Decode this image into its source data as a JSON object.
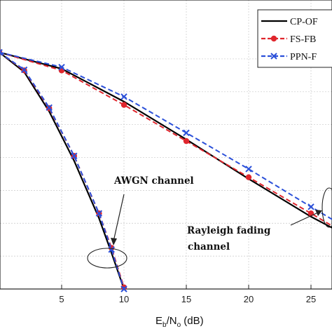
{
  "chart_data": {
    "type": "line",
    "xlabel_base": "E",
    "xlabel_sub1": "b",
    "xlabel_mid": "/N",
    "xlabel_sub2": "o",
    "xlabel_unit": " (dB)",
    "xlim": [
      0,
      27
    ],
    "x_ticks": [
      5,
      10,
      15,
      20,
      25
    ],
    "ylim": [
      0,
      8
    ],
    "grid": true,
    "legend_position": "top-right",
    "series": [
      {
        "name": "CP-OF",
        "color": "#000000",
        "dash": "solid",
        "marker": "none",
        "curves": [
          {
            "x": [
              0,
              5,
              10,
              15,
              20,
              25,
              27
            ],
            "y": [
              7.2,
              6.7,
              5.7,
              4.55,
              3.35,
              2.2,
              1.8
            ]
          },
          {
            "x": [
              0,
              2,
              4,
              6,
              8,
              9,
              10
            ],
            "y": [
              7.2,
              6.6,
              5.4,
              3.9,
              2.15,
              1.1,
              0
            ]
          }
        ]
      },
      {
        "name": "FS-FB",
        "color": "#e0262d",
        "dash": "dashed",
        "marker": "circle",
        "curves": [
          {
            "x": [
              0,
              5,
              10,
              15,
              20,
              25,
              27
            ],
            "y": [
              7.2,
              6.65,
              5.6,
              4.5,
              3.4,
              2.3,
              1.85
            ]
          },
          {
            "x": [
              0,
              2,
              4,
              6,
              8,
              9,
              10
            ],
            "y": [
              7.2,
              6.65,
              5.5,
              4.05,
              2.3,
              1.25,
              0.05
            ]
          }
        ]
      },
      {
        "name": "PPN-F",
        "color": "#2b50d9",
        "dash": "dashed",
        "marker": "x",
        "curves": [
          {
            "x": [
              0,
              5,
              10,
              15,
              20,
              25,
              27
            ],
            "y": [
              7.2,
              6.75,
              5.85,
              4.75,
              3.65,
              2.5,
              2.05
            ]
          },
          {
            "x": [
              0,
              2,
              4,
              6,
              8,
              9,
              10
            ],
            "y": [
              7.2,
              6.67,
              5.52,
              4.05,
              2.3,
              1.2,
              0
            ]
          }
        ]
      }
    ],
    "annotations": [
      {
        "text": "AWGN channel"
      },
      {
        "text": "Rayleigh fading"
      },
      {
        "text": "channel"
      }
    ]
  }
}
